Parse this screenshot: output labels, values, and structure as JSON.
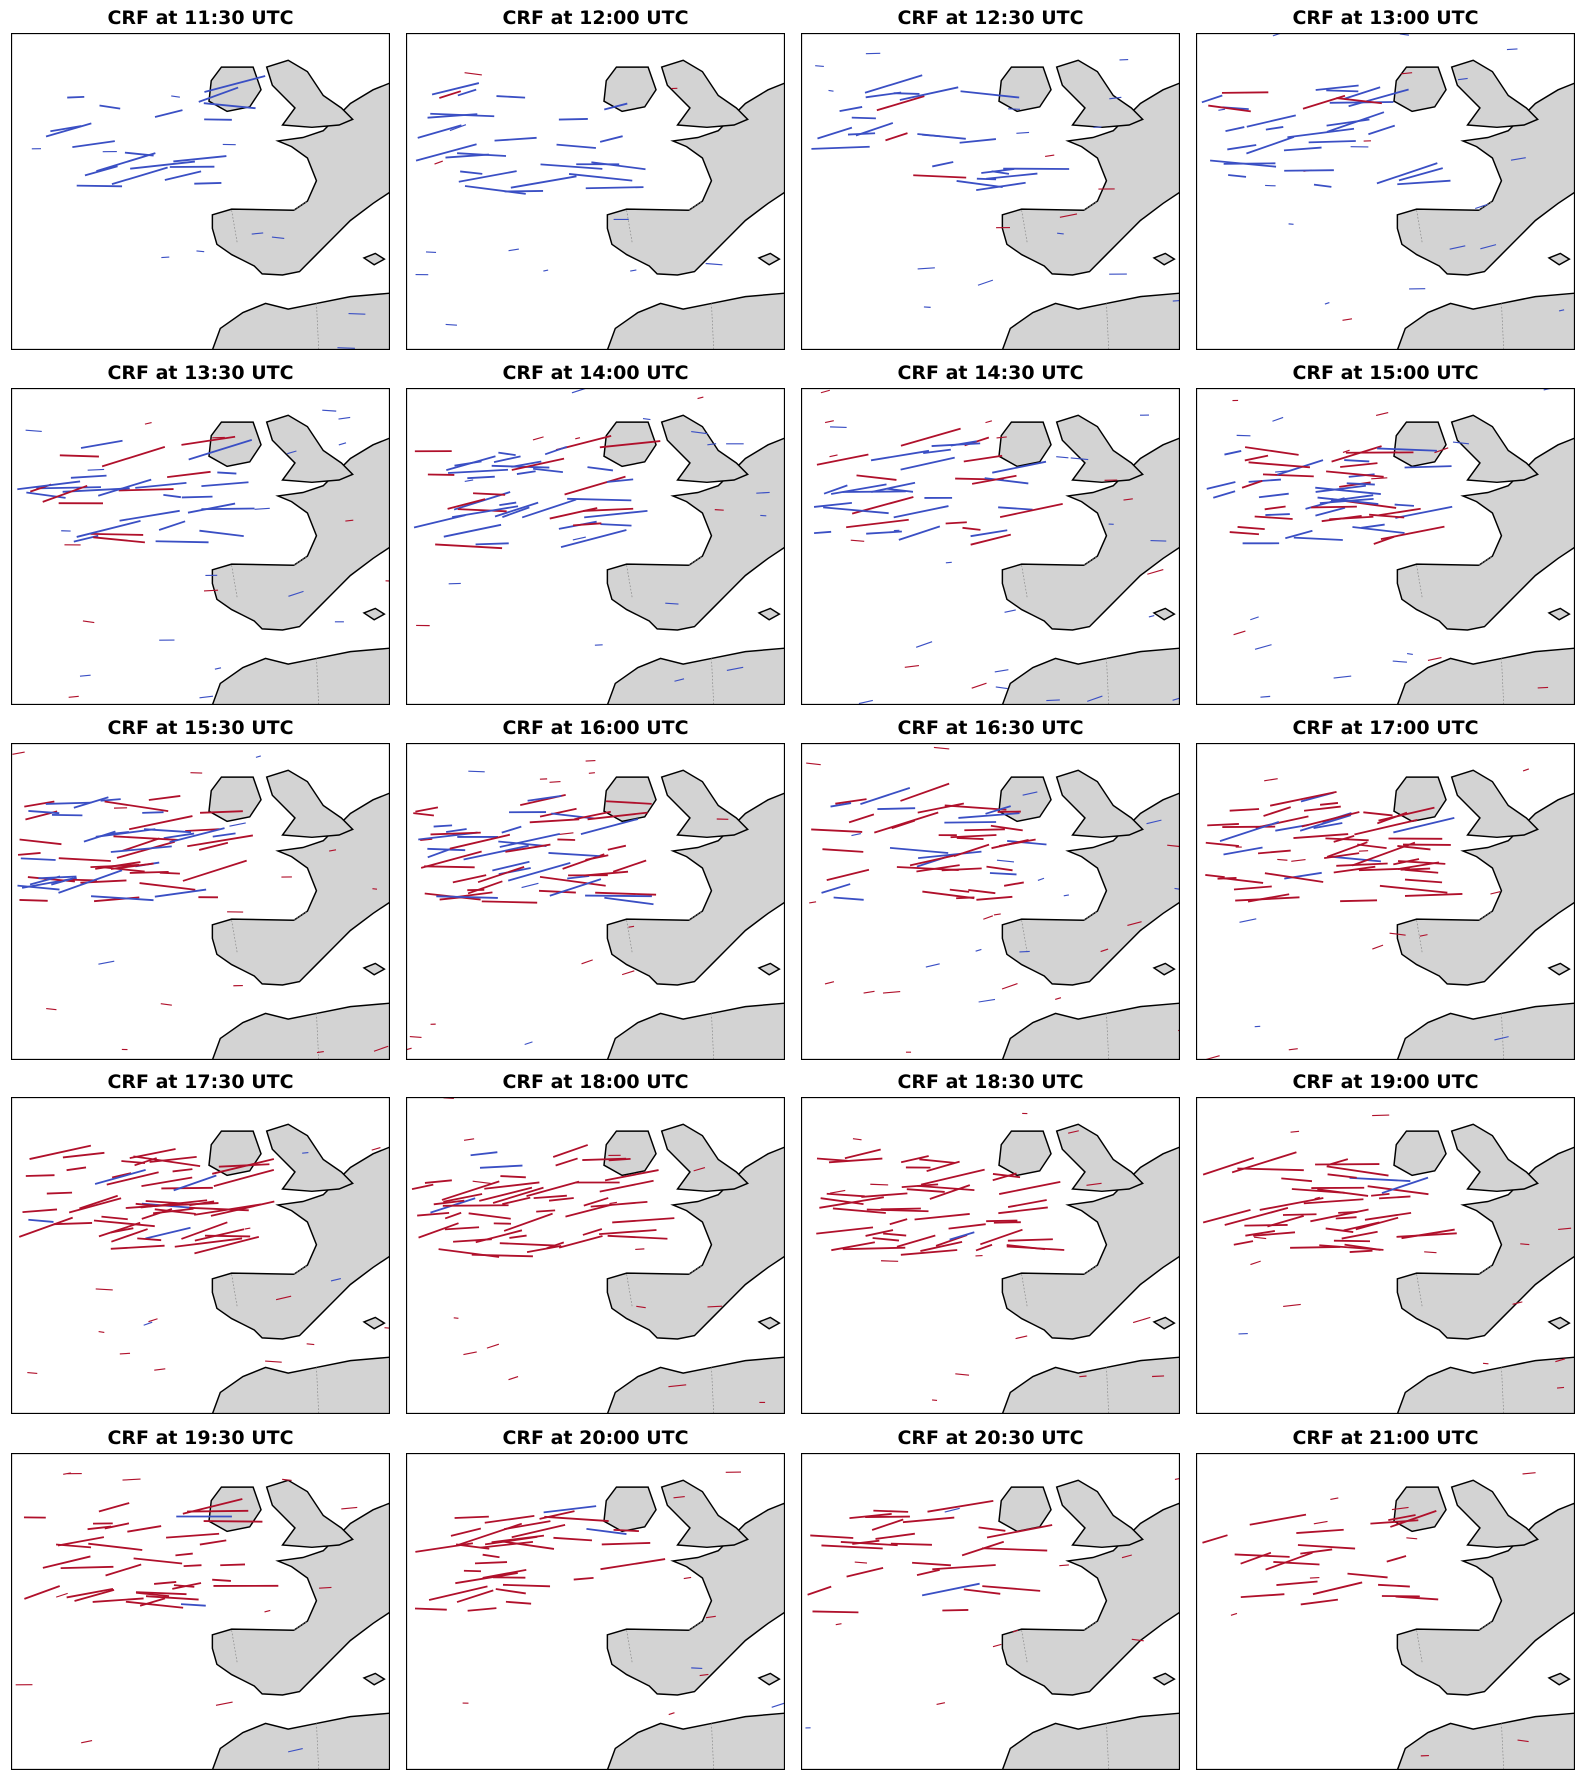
{
  "panels": [
    {
      "title": "CRF at 11:30 UTC"
    },
    {
      "title": "CRF at 12:00 UTC"
    },
    {
      "title": "CRF at 12:30 UTC"
    },
    {
      "title": "CRF at 13:00 UTC"
    },
    {
      "title": "CRF at 13:30 UTC"
    },
    {
      "title": "CRF at 14:00 UTC"
    },
    {
      "title": "CRF at 14:30 UTC"
    },
    {
      "title": "CRF at 15:00 UTC"
    },
    {
      "title": "CRF at 15:30 UTC"
    },
    {
      "title": "CRF at 16:00 UTC"
    },
    {
      "title": "CRF at 16:30 UTC"
    },
    {
      "title": "CRF at 17:00 UTC"
    },
    {
      "title": "CRF at 17:30 UTC"
    },
    {
      "title": "CRF at 18:00 UTC"
    },
    {
      "title": "CRF at 18:30 UTC"
    },
    {
      "title": "CRF at 19:00 UTC"
    },
    {
      "title": "CRF at 19:30 UTC"
    },
    {
      "title": "CRF at 20:00 UTC"
    },
    {
      "title": "CRF at 20:30 UTC"
    },
    {
      "title": "CRF at 21:00 UTC"
    }
  ]
}
